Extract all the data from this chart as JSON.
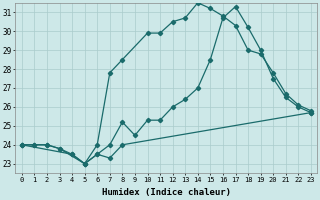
{
  "background_color": "#cde8e8",
  "grid_color": "#aacccc",
  "line_color": "#1a6b6b",
  "xlabel": "Humidex (Indice chaleur)",
  "xlim": [
    -0.5,
    23.5
  ],
  "ylim": [
    22.5,
    31.5
  ],
  "xticks": [
    0,
    1,
    2,
    3,
    4,
    5,
    6,
    7,
    8,
    9,
    10,
    11,
    12,
    13,
    14,
    15,
    16,
    17,
    18,
    19,
    20,
    21,
    22,
    23
  ],
  "yticks": [
    23,
    24,
    25,
    26,
    27,
    28,
    29,
    30,
    31
  ],
  "line1_upper": {
    "x": [
      0,
      1,
      2,
      3,
      5,
      6,
      7,
      8,
      10,
      11,
      12,
      13,
      14,
      15,
      16,
      17,
      18,
      19,
      20,
      21,
      22,
      23
    ],
    "y": [
      24,
      24,
      24,
      23.8,
      23,
      24,
      27.8,
      28.5,
      29.9,
      29.9,
      30.5,
      30.7,
      31.5,
      31.2,
      30.8,
      30.3,
      29.0,
      28.8,
      27.8,
      26.7,
      26.1,
      25.8
    ]
  },
  "line2_mid": {
    "x": [
      0,
      1,
      2,
      3,
      4,
      5,
      6,
      7,
      8,
      9,
      10,
      11,
      12,
      13,
      14,
      15,
      16,
      17,
      18,
      19,
      20,
      21,
      22,
      23
    ],
    "y": [
      24,
      24,
      24,
      23.8,
      23.5,
      23,
      23.5,
      24.0,
      25.2,
      24.5,
      25.3,
      25.3,
      26.0,
      26.4,
      27.0,
      28.5,
      30.7,
      31.3,
      30.2,
      29.0,
      27.5,
      26.5,
      26.0,
      25.7
    ]
  },
  "line3_low": {
    "x": [
      0,
      4,
      5,
      6,
      7,
      8,
      23
    ],
    "y": [
      24,
      23.5,
      23.0,
      23.5,
      23.3,
      24.0,
      25.7
    ]
  }
}
